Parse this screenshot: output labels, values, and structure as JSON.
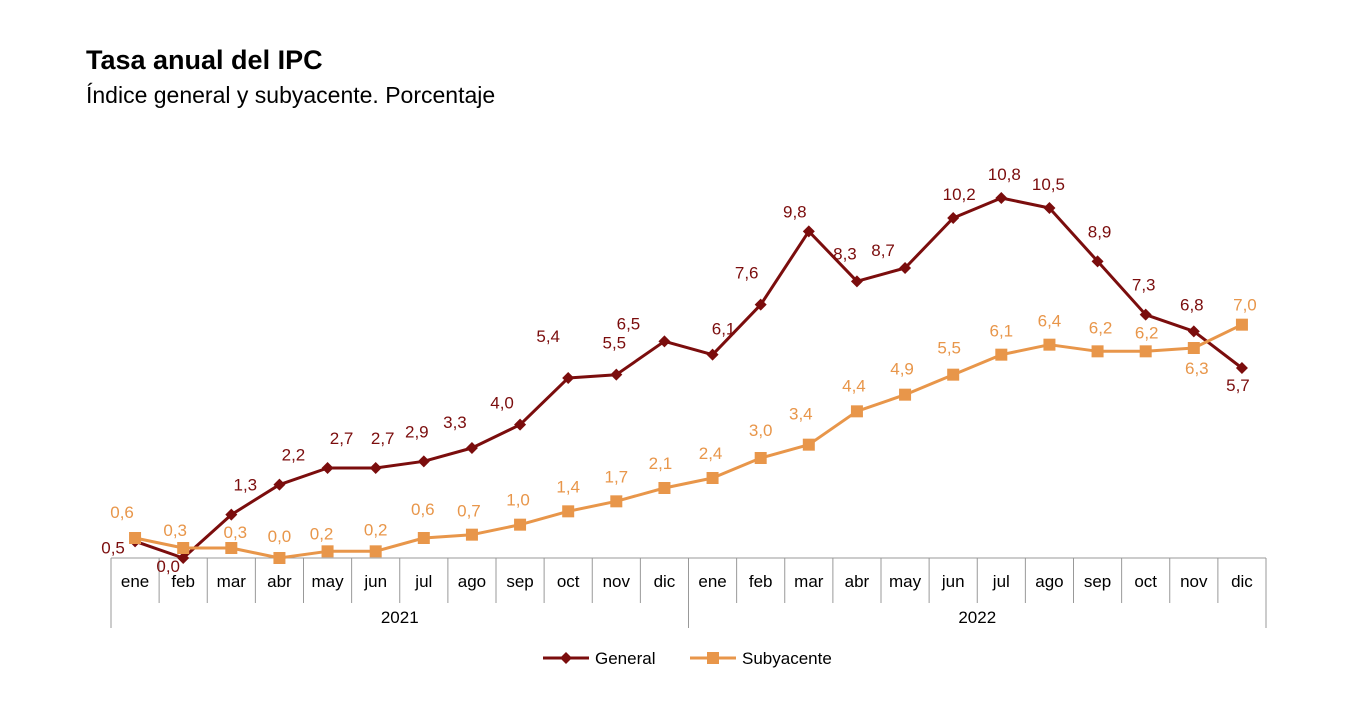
{
  "header": {
    "title": "Tasa anual del IPC",
    "subtitle": "Índice general y subyacente. Porcentaje"
  },
  "colors": {
    "general": "#7B0D0D",
    "subyacente": "#E8964A",
    "axis": "#999999"
  },
  "chart_data": {
    "type": "line",
    "title": "Tasa anual del IPC",
    "subtitle": "Índice general y subyacente. Porcentaje",
    "categories": [
      "ene",
      "feb",
      "mar",
      "abr",
      "may",
      "jun",
      "jul",
      "ago",
      "sep",
      "oct",
      "nov",
      "dic",
      "ene",
      "feb",
      "mar",
      "abr",
      "may",
      "jun",
      "jul",
      "ago",
      "sep",
      "oct",
      "nov",
      "dic"
    ],
    "groups": [
      {
        "label": "2021",
        "start": 0,
        "end": 11
      },
      {
        "label": "2022",
        "start": 12,
        "end": 23
      }
    ],
    "ylim": [
      0,
      11
    ],
    "series": [
      {
        "name": "General",
        "marker": "diamond",
        "values": [
          0.5,
          0.0,
          1.3,
          2.2,
          2.7,
          2.7,
          2.9,
          3.3,
          4.0,
          5.4,
          5.5,
          6.5,
          6.1,
          7.6,
          9.8,
          8.3,
          8.7,
          10.2,
          10.8,
          10.5,
          8.9,
          7.3,
          6.8,
          5.7
        ],
        "labels": [
          "0,5",
          "0,0",
          "1,3",
          "2,2",
          "2,7",
          "2,7",
          "2,9",
          "3,3",
          "4,0",
          "5,4",
          "5,5",
          "6,5",
          "6,1",
          "7,6",
          "9,8",
          "8,3",
          "8,7",
          "10,2",
          "10,8",
          "10,5",
          "8,9",
          "7,3",
          "6,8",
          "5,7"
        ]
      },
      {
        "name": "Subyacente",
        "marker": "square",
        "values": [
          0.6,
          0.3,
          0.3,
          0.0,
          0.2,
          0.2,
          0.6,
          0.7,
          1.0,
          1.4,
          1.7,
          2.1,
          2.4,
          3.0,
          3.4,
          4.4,
          4.9,
          5.5,
          6.1,
          6.4,
          6.2,
          6.2,
          6.3,
          7.0
        ],
        "labels": [
          "0,6",
          "0,3",
          "0,3",
          "0,0",
          "0,2",
          "0,2",
          "0,6",
          "0,7",
          "1,0",
          "1,4",
          "1,7",
          "2,1",
          "2,4",
          "3,0",
          "3,4",
          "4,4",
          "4,9",
          "5,5",
          "6,1",
          "6,4",
          "6,2",
          "6,2",
          "6,3",
          "7,0"
        ]
      }
    ],
    "legend": {
      "position": "bottom",
      "items": [
        "General",
        "Subyacente"
      ]
    }
  }
}
